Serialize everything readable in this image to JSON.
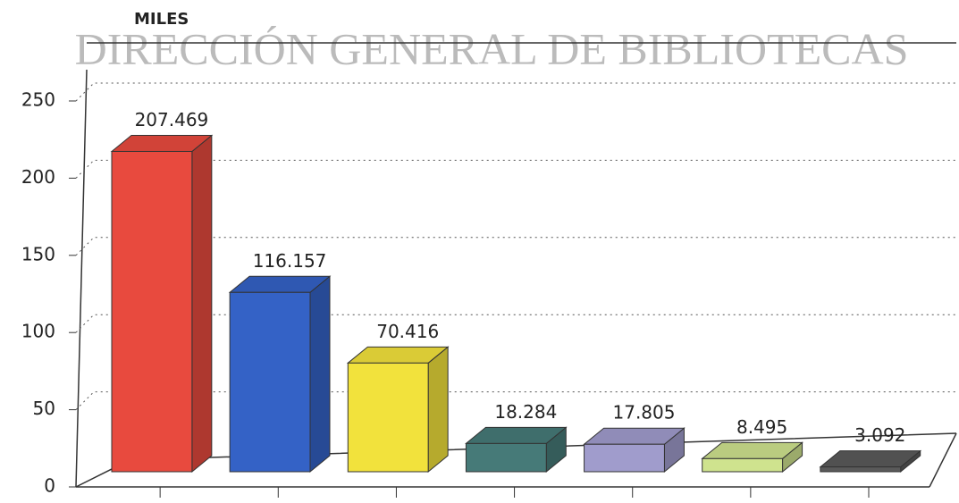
{
  "chart_data": {
    "type": "bar3d",
    "watermark": "DIRECCIÓN GENERAL DE BIBLIOTECAS",
    "y_label": "MILES",
    "categories": [
      null,
      null,
      null,
      null,
      null,
      null,
      null
    ],
    "values": [
      207.469,
      116.157,
      70.416,
      18.284,
      17.805,
      8.495,
      3.092
    ],
    "colors": [
      "#e84a3e",
      "#3462c6",
      "#f2e23c",
      "#467a78",
      "#a09ccc",
      "#cfe38e",
      "#5a5a5a"
    ],
    "ylim": [
      0,
      250
    ],
    "yticks": [
      0,
      50,
      100,
      150,
      200,
      250
    ],
    "grid": true
  }
}
